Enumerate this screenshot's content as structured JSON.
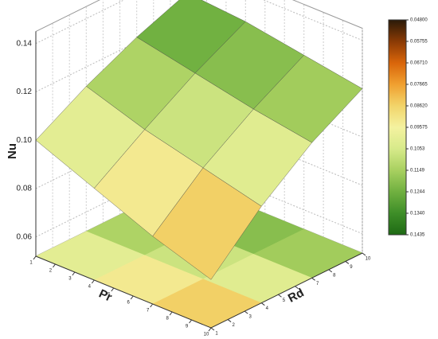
{
  "chart_data": {
    "type": "surface3d",
    "zlabel": "Nu",
    "xlabel": "Pr",
    "ylabel": "Rd",
    "x": [
      1,
      4,
      7,
      10
    ],
    "y": [
      1,
      4,
      7,
      10
    ],
    "z": [
      [
        0.1,
        0.112,
        0.122,
        0.13
      ],
      [
        0.09,
        0.104,
        0.117,
        0.128
      ],
      [
        0.08,
        0.098,
        0.112,
        0.124
      ],
      [
        0.072,
        0.092,
        0.108,
        0.12
      ]
    ],
    "xlim": [
      1,
      10
    ],
    "ylim": [
      1,
      10
    ],
    "zlim": [
      0.052,
      0.145
    ],
    "xticks": [
      1,
      2,
      3,
      4,
      5,
      6,
      7,
      8,
      9,
      10
    ],
    "yticks": [
      1,
      2,
      3,
      4,
      5,
      6,
      7,
      8,
      9,
      10
    ],
    "zticks": [
      0.06,
      0.08,
      {
        "value": 0.1,
        "label": "0.10"
      },
      0.12,
      0.14
    ],
    "colorbar_ticks": [
      {
        "value": 0.048,
        "label": "0.04800"
      },
      {
        "value": 0.05755,
        "label": "0.05755"
      },
      {
        "value": 0.0671,
        "label": "0.06710"
      },
      {
        "value": 0.07665,
        "label": "0.07665"
      },
      {
        "value": 0.0862,
        "label": "0.08620"
      },
      {
        "value": 0.09575,
        "label": "0.09575"
      },
      0.1053,
      0.1149,
      0.1244,
      {
        "value": 0.134,
        "label": "0.1340"
      },
      0.1435
    ],
    "colorbar_colors": [
      "#2a1a08",
      "#8a3a05",
      "#d9650a",
      "#f0a030",
      "#f2d46a",
      "#f4f2a0",
      "#d7ea8a",
      "#a8d060",
      "#70b040",
      "#3e8e28",
      "#1e6a14"
    ],
    "grid": true
  }
}
